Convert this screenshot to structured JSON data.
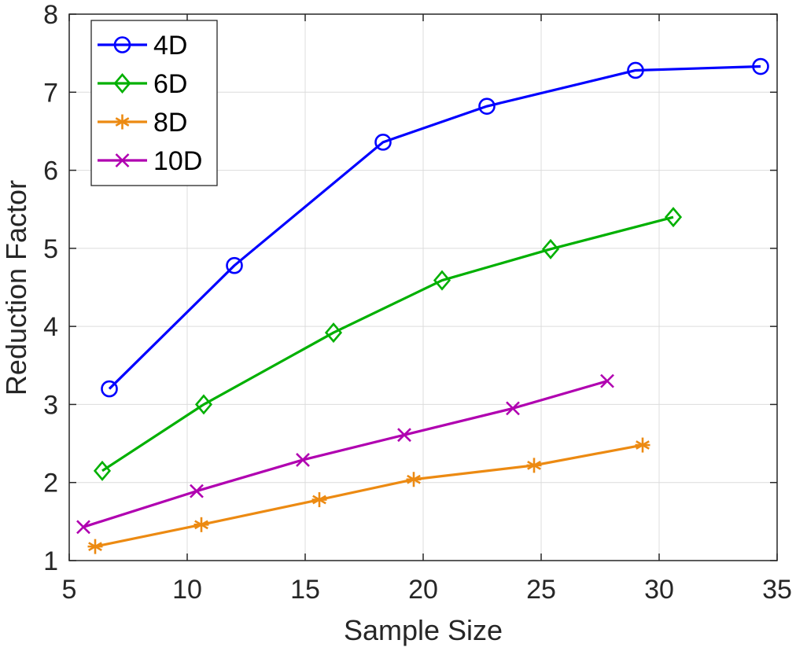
{
  "chart_data": {
    "type": "line",
    "title": "",
    "xlabel": "Sample Size",
    "ylabel": "Reduction Factor",
    "xlim": [
      5,
      35
    ],
    "ylim": [
      1,
      8
    ],
    "xticks": [
      5,
      10,
      15,
      20,
      25,
      30,
      35
    ],
    "yticks": [
      1,
      2,
      3,
      4,
      5,
      6,
      7,
      8
    ],
    "grid": true,
    "legend_position": "top-left",
    "series": [
      {
        "name": "4D",
        "color": "#0000ff",
        "marker": "circle",
        "x": [
          6.7,
          12.0,
          18.3,
          22.7,
          29.0,
          34.3
        ],
        "y": [
          3.2,
          4.78,
          6.36,
          6.82,
          7.28,
          7.33
        ]
      },
      {
        "name": "6D",
        "color": "#00b000",
        "marker": "diamond",
        "x": [
          6.4,
          10.7,
          16.2,
          20.8,
          25.4,
          30.6
        ],
        "y": [
          2.15,
          3.0,
          3.92,
          4.59,
          4.99,
          5.4
        ]
      },
      {
        "name": "8D",
        "color": "#ec8a12",
        "marker": "asterisk",
        "x": [
          6.1,
          10.6,
          15.6,
          19.6,
          24.7,
          29.3
        ],
        "y": [
          1.18,
          1.46,
          1.78,
          2.04,
          2.22,
          2.48
        ]
      },
      {
        "name": "10D",
        "color": "#b000b0",
        "marker": "x",
        "x": [
          5.6,
          10.4,
          14.9,
          19.2,
          23.8,
          27.8
        ],
        "y": [
          1.43,
          1.89,
          2.29,
          2.61,
          2.95,
          3.3
        ]
      }
    ]
  }
}
